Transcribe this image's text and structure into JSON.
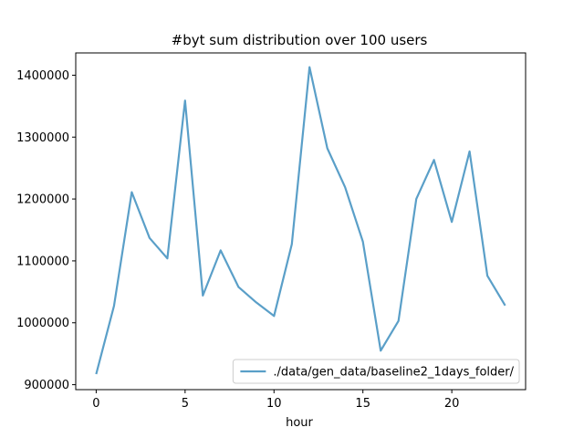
{
  "chart_data": {
    "type": "line",
    "title": "#byt sum distribution over 100 users",
    "xlabel": "hour",
    "ylabel": "",
    "xlim": [
      -1.15,
      24.15
    ],
    "ylim": [
      892000,
      1436000
    ],
    "xticks": [
      0,
      5,
      10,
      15,
      20
    ],
    "yticks": [
      900000,
      1000000,
      1100000,
      1200000,
      1300000,
      1400000
    ],
    "grid": false,
    "legend_position": "lower-right",
    "series": [
      {
        "name": "./data/gen_data/baseline2_1days_folder/",
        "color": "#5a9fc8",
        "x": [
          0,
          1,
          2,
          3,
          4,
          5,
          6,
          7,
          8,
          9,
          10,
          11,
          12,
          13,
          14,
          15,
          16,
          17,
          18,
          19,
          20,
          21,
          22,
          23
        ],
        "y": [
          917000,
          1027000,
          1211000,
          1137000,
          1104000,
          1359000,
          1044000,
          1117000,
          1058000,
          1033000,
          1011000,
          1127000,
          1413000,
          1282000,
          1219000,
          1131000,
          955000,
          1003000,
          1200000,
          1263000,
          1163000,
          1277000,
          1076000,
          1028000
        ]
      }
    ]
  }
}
